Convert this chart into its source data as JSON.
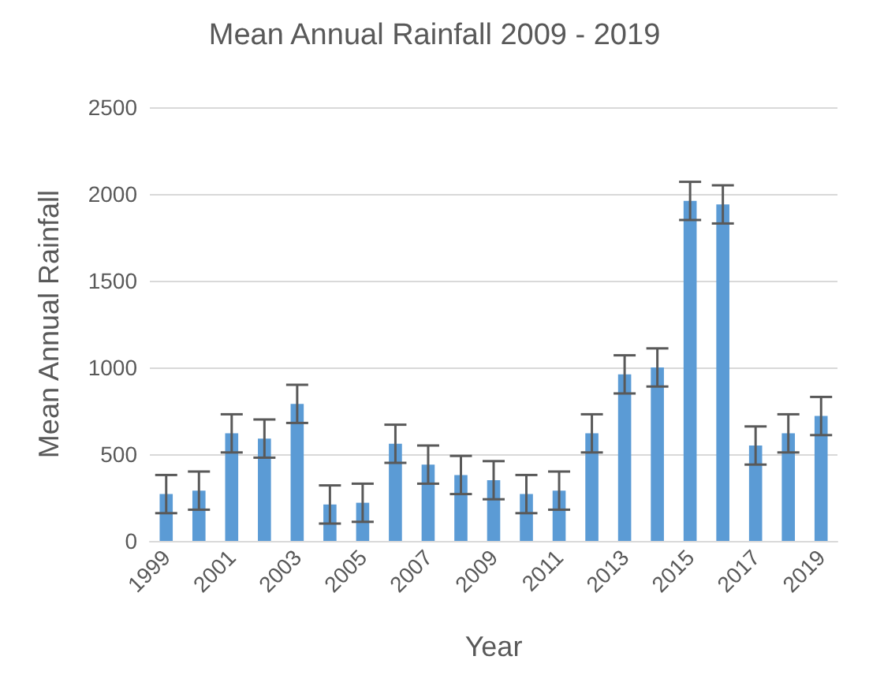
{
  "chart_data": {
    "type": "bar",
    "title": "Mean Annual Rainfall 2009 - 2019",
    "xlabel": "Year",
    "ylabel": "Mean Annual Rainfall",
    "categories": [
      "1999",
      null,
      "2001",
      null,
      "2003",
      null,
      "2005",
      null,
      "2007",
      null,
      "2009",
      null,
      "2011",
      null,
      "2013",
      null,
      "2015",
      null,
      "2017",
      null,
      "2019"
    ],
    "values": [
      270,
      290,
      620,
      590,
      790,
      210,
      220,
      560,
      440,
      380,
      350,
      270,
      290,
      620,
      960,
      1000,
      1960,
      1940,
      550,
      620,
      720
    ],
    "errors": [
      110,
      110,
      110,
      110,
      110,
      110,
      110,
      110,
      110,
      110,
      110,
      110,
      110,
      110,
      110,
      110,
      110,
      110,
      110,
      110,
      110
    ],
    "color": "#5b9bd5",
    "ylim": [
      0,
      2500
    ],
    "yticks": [
      0,
      500,
      1000,
      1500,
      2000,
      2500
    ],
    "grid": "y"
  }
}
